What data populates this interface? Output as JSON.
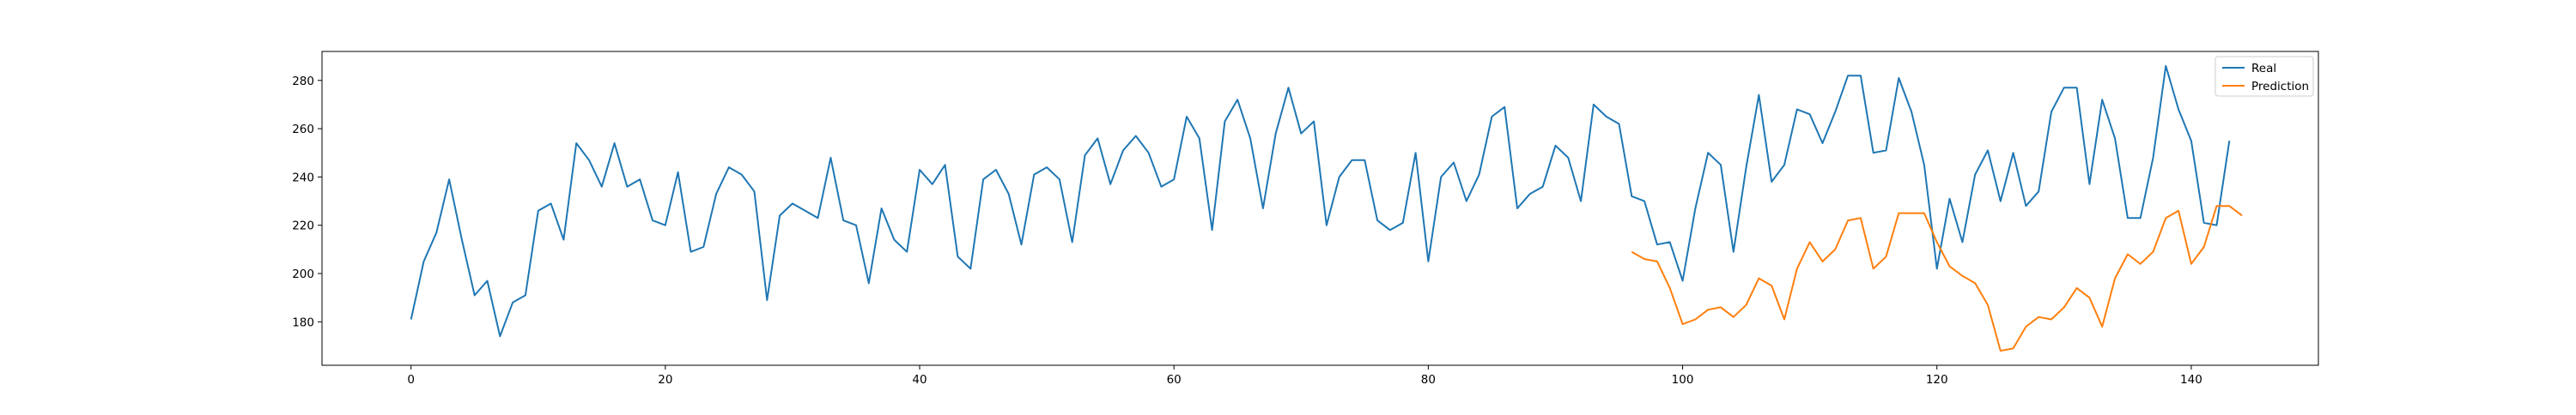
{
  "chart_data": {
    "type": "line",
    "title": "",
    "xlabel": "",
    "ylabel": "",
    "xlim": [
      -7,
      150
    ],
    "ylim": [
      162,
      292
    ],
    "xticks": [
      0,
      20,
      40,
      60,
      80,
      100,
      120,
      140
    ],
    "yticks": [
      180,
      200,
      220,
      240,
      260,
      280
    ],
    "grid": false,
    "legend": {
      "position": "top-right",
      "entries": [
        "Real",
        "Prediction"
      ]
    },
    "series": [
      {
        "name": "Real",
        "color": "#1f77b4",
        "x_start": 0,
        "values": [
          181,
          205,
          217,
          239,
          214,
          191,
          197,
          174,
          188,
          191,
          226,
          229,
          214,
          254,
          247,
          236,
          254,
          236,
          239,
          222,
          220,
          242,
          209,
          211,
          233,
          244,
          241,
          234,
          189,
          224,
          229,
          226,
          223,
          248,
          222,
          220,
          196,
          227,
          214,
          209,
          243,
          237,
          245,
          207,
          202,
          239,
          243,
          233,
          212,
          241,
          244,
          239,
          213,
          249,
          256,
          237,
          251,
          257,
          250,
          236,
          239,
          265,
          256,
          218,
          263,
          272,
          256,
          227,
          258,
          277,
          258,
          263,
          220,
          240,
          247,
          247,
          222,
          218,
          221,
          250,
          205,
          240,
          246,
          230,
          241,
          265,
          269,
          227,
          233,
          236,
          253,
          248,
          230,
          270,
          265,
          262,
          232,
          230,
          212,
          213,
          197,
          227,
          250,
          245,
          209,
          244,
          274,
          238,
          245,
          268,
          266,
          254,
          267,
          282,
          282,
          250,
          251,
          281,
          267,
          245,
          202,
          231,
          213,
          241,
          251,
          230,
          250,
          228,
          234,
          267,
          277,
          277,
          237,
          272,
          256,
          223,
          223,
          248,
          286,
          268,
          255,
          221,
          220,
          255
        ]
      },
      {
        "name": "Prediction",
        "color": "#ff7f0e",
        "x_start": 96,
        "values": [
          209,
          206,
          205,
          194,
          179,
          181,
          185,
          186,
          182,
          187,
          198,
          195,
          181,
          202,
          213,
          205,
          210,
          222,
          223,
          202,
          207,
          225,
          225,
          225,
          213,
          203,
          199,
          196,
          187,
          168,
          169,
          178,
          182,
          181,
          186,
          194,
          190,
          178,
          198,
          208,
          204,
          209,
          223,
          226,
          204,
          211,
          228,
          228,
          224
        ]
      }
    ]
  }
}
